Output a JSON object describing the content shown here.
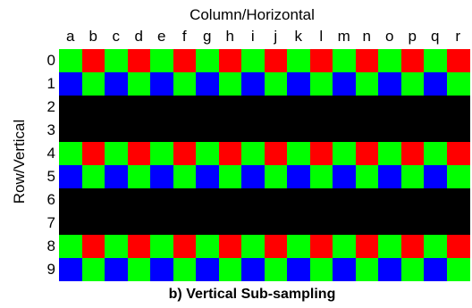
{
  "title": "Column/Horizontal",
  "side_title": "Row/Vertical",
  "caption": "b) Vertical Sub-sampling",
  "columns": [
    "a",
    "b",
    "c",
    "d",
    "e",
    "f",
    "g",
    "h",
    "i",
    "j",
    "k",
    "l",
    "m",
    "n",
    "o",
    "p",
    "q",
    "r"
  ],
  "rows": [
    "0",
    "1",
    "2",
    "3",
    "4",
    "5",
    "6",
    "7",
    "8",
    "9"
  ],
  "colors": {
    "R": "#ff0000",
    "G": "#00ff00",
    "B": "#0000ff",
    "K": "#000000"
  },
  "pattern": [
    "GRGRGRGRGRGRGRGRGR",
    "BGBGBGBGBGBGBGBGBG",
    "KKKKKKKKKKKKKKKKKK",
    "KKKKKKKKKKKKKKKKKK",
    "GRGRGRGRGRGRGRGRGR",
    "BGBGBGBGBGBGBGBGBG",
    "KKKKKKKKKKKKKKKKKK",
    "KKKKKKKKKKKKKKKKKK",
    "GRGRGRGRGRGRGRGRGR",
    "BGBGBGBGBGBGBGBGBG"
  ]
}
